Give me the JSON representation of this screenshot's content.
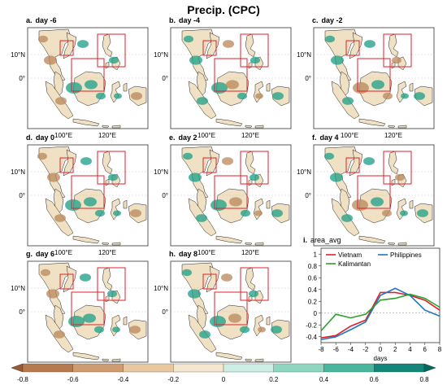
{
  "title": "Precip. (CPC)",
  "colors": {
    "land": "#f1e1c4",
    "land_dry": "#b8855a",
    "land_wet": "#1a9e86",
    "box": "#e0212b",
    "vietnam": "#e0212b",
    "philippines": "#1f77c4",
    "kalimantan": "#2ca02c"
  },
  "maps": [
    {
      "label": "a.",
      "title": "day -6"
    },
    {
      "label": "b.",
      "title": "day -4"
    },
    {
      "label": "c.",
      "title": "day -2"
    },
    {
      "label": "d.",
      "title": "day 0"
    },
    {
      "label": "e.",
      "title": "day 2"
    },
    {
      "label": "f.",
      "title": "day 4"
    },
    {
      "label": "g.",
      "title": "day 6"
    },
    {
      "label": "h.",
      "title": "day 8"
    }
  ],
  "map_axes": {
    "lat_ticks": [
      "10°N",
      "0°"
    ],
    "lon_ticks": [
      "100°E",
      "120°E"
    ]
  },
  "chart_data": {
    "type": "line",
    "label": "i.",
    "title": "area_avg",
    "xlabel": "days",
    "ylabel": "",
    "x": [
      -8,
      -6,
      -4,
      -2,
      0,
      2,
      4,
      6,
      8
    ],
    "xlim": [
      -8,
      8
    ],
    "ylim": [
      -0.5,
      1.1
    ],
    "yticks": [
      -0.4,
      -0.2,
      0,
      0.2,
      0.4,
      0.6,
      0.8,
      1
    ],
    "ytick_labels": [
      "-0.4",
      "-0.2",
      "0",
      "0.2",
      "0.4",
      "0.6",
      "0.8",
      "1"
    ],
    "zero_line": "dashed",
    "legend": "top",
    "series": [
      {
        "name": "Vietnam",
        "color": "#e0212b",
        "values": [
          -0.42,
          -0.38,
          -0.22,
          -0.12,
          0.35,
          0.35,
          0.3,
          0.22,
          0.05
        ]
      },
      {
        "name": "Philippines",
        "color": "#1f77c4",
        "values": [
          -0.45,
          -0.4,
          -0.28,
          -0.15,
          0.3,
          0.42,
          0.3,
          0.05,
          -0.05
        ]
      },
      {
        "name": "Kalimantan",
        "color": "#2ca02c",
        "values": [
          -0.3,
          -0.02,
          -0.08,
          -0.02,
          0.22,
          0.25,
          0.32,
          0.25,
          0.1
        ]
      }
    ]
  },
  "colorbar": {
    "ticks": [
      -0.8,
      -0.6,
      -0.4,
      -0.2,
      0,
      0.2,
      0.4,
      0.6,
      0.8
    ],
    "tick_labels": [
      "-0.8",
      "-0.6",
      "-0.4",
      "-0.2",
      "0",
      "0.2",
      "0.4",
      "0.6",
      "0.8"
    ],
    "colors": [
      "#9c5a32",
      "#b77a4f",
      "#cf9c70",
      "#e7c8a0",
      "#f4e6cf",
      "#cdeee4",
      "#8fd6c0",
      "#48b79d",
      "#13877a",
      "#046a60"
    ]
  }
}
